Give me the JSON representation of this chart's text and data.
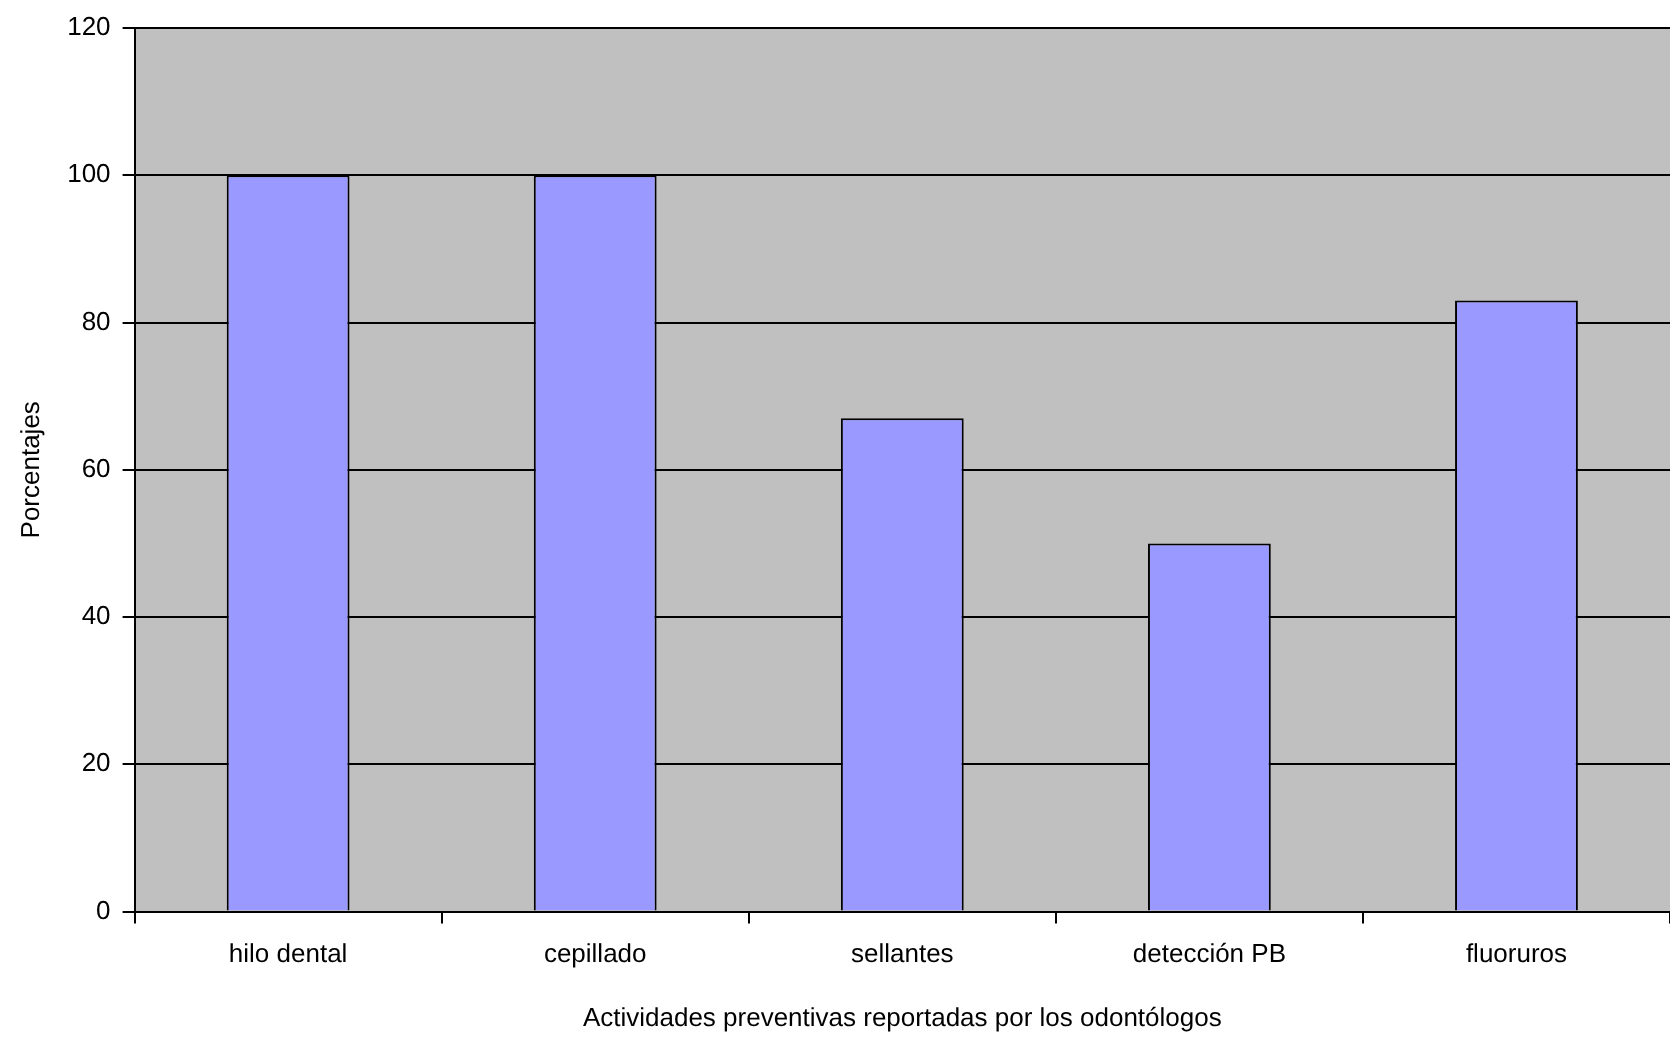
{
  "chart_data": {
    "type": "bar",
    "xlabel": "Actividades preventivas reportadas por los odontólogos",
    "ylabel": "Porcentajes",
    "categories": [
      "hilo dental",
      "cepillado",
      "sellantes",
      "detección PB",
      "fluoruros"
    ],
    "values": [
      100,
      100,
      67,
      50,
      83
    ],
    "color": "#9999ff",
    "ylim": [
      0,
      120
    ],
    "yticks": [
      0,
      20,
      40,
      60,
      80,
      100,
      120
    ],
    "grid": "y",
    "legend": false
  }
}
